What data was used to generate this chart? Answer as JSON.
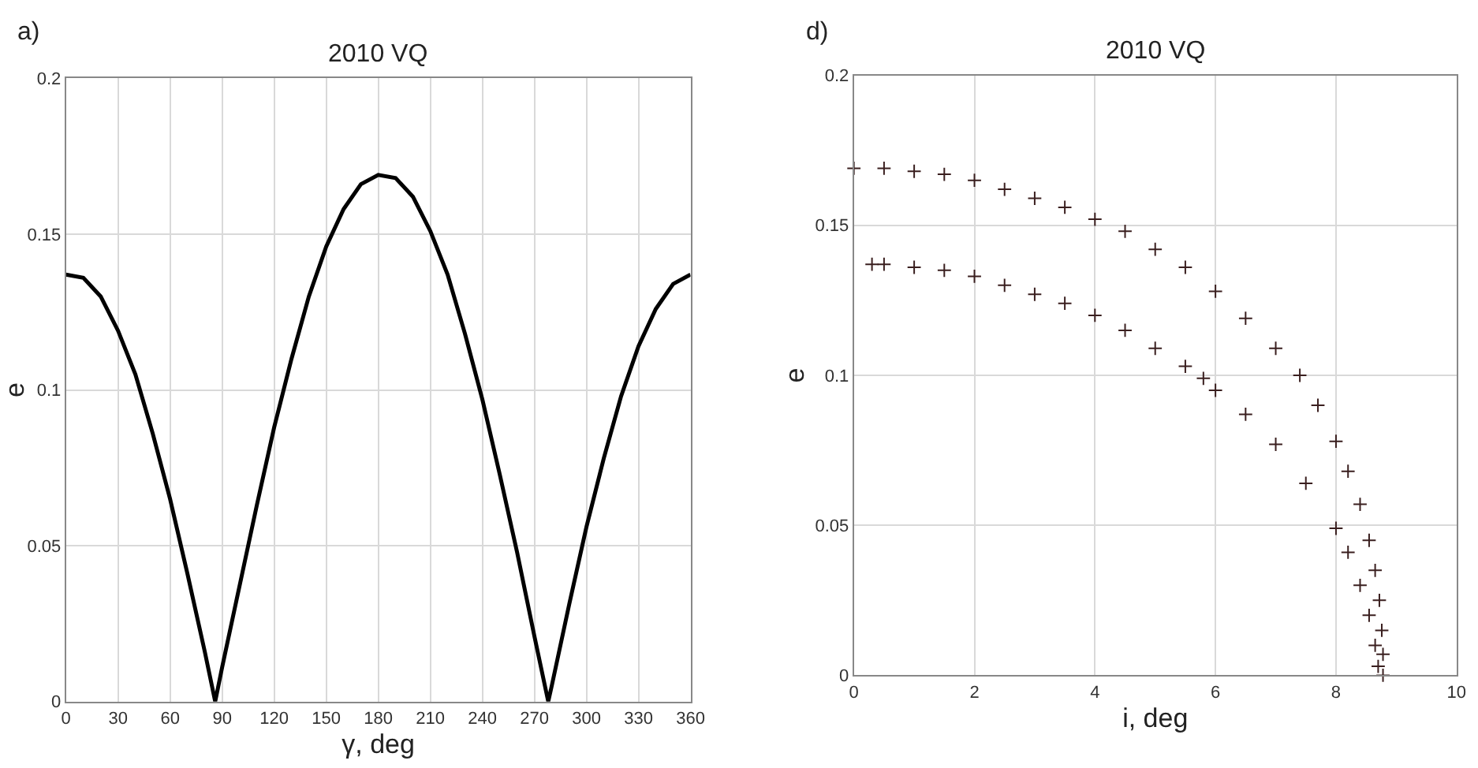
{
  "chart_data": [
    {
      "type": "line",
      "title": "2010 VQ",
      "xlabel": "γ, deg",
      "ylabel": "e",
      "annotations": [
        "a)"
      ],
      "x": [
        0,
        10,
        20,
        30,
        40,
        50,
        60,
        70,
        80,
        86,
        90,
        100,
        110,
        120,
        130,
        140,
        150,
        160,
        170,
        180,
        190,
        200,
        210,
        220,
        230,
        240,
        250,
        260,
        270,
        278,
        280,
        290,
        300,
        310,
        320,
        330,
        340,
        350,
        360
      ],
      "series": [
        {
          "color": "#000000",
          "values": [
            0.137,
            0.136,
            0.13,
            0.119,
            0.105,
            0.086,
            0.065,
            0.041,
            0.016,
            0.0,
            0.011,
            0.037,
            0.063,
            0.088,
            0.11,
            0.13,
            0.146,
            0.158,
            0.166,
            0.169,
            0.168,
            0.162,
            0.151,
            0.137,
            0.118,
            0.097,
            0.073,
            0.048,
            0.021,
            0.0,
            0.005,
            0.031,
            0.056,
            0.078,
            0.098,
            0.114,
            0.126,
            0.134,
            0.137
          ]
        }
      ],
      "xlim": [
        0,
        360
      ],
      "xticks": [
        0,
        30,
        60,
        90,
        120,
        150,
        180,
        210,
        240,
        270,
        300,
        330,
        360
      ],
      "ylim": [
        0,
        0.2
      ],
      "yticks": [
        0,
        0.05,
        0.1,
        0.15,
        0.2
      ],
      "grid": true,
      "marker": "none",
      "line_style": "solid"
    },
    {
      "type": "scatter",
      "title": "2010 VQ",
      "xlabel": "i, deg",
      "ylabel": "e",
      "annotations": [
        "d)"
      ],
      "series": [
        {
          "color": "#3a1f1f",
          "x": [
            0,
            0.5,
            1,
            1.5,
            2,
            2.5,
            3,
            3.5,
            4,
            4.5,
            5,
            5.5,
            6,
            6.5,
            7,
            7.4,
            7.7,
            8.0,
            8.2,
            8.4,
            8.55,
            8.65,
            8.72,
            8.76,
            8.78,
            8.78
          ],
          "values": [
            0.169,
            0.169,
            0.168,
            0.167,
            0.165,
            0.162,
            0.159,
            0.156,
            0.152,
            0.148,
            0.142,
            0.136,
            0.128,
            0.119,
            0.109,
            0.1,
            0.09,
            0.078,
            0.068,
            0.057,
            0.045,
            0.035,
            0.025,
            0.015,
            0.007,
            0.0
          ]
        },
        {
          "color": "#3a1f1f",
          "x": [
            0.3,
            0.5,
            1,
            1.5,
            2,
            2.5,
            3,
            3.5,
            4,
            4.5,
            5,
            5.5,
            5.8,
            6,
            6.5,
            7,
            7.5,
            8,
            8.2,
            8.4,
            8.55,
            8.65,
            8.7
          ],
          "values": [
            0.137,
            0.137,
            0.136,
            0.135,
            0.133,
            0.13,
            0.127,
            0.124,
            0.12,
            0.115,
            0.109,
            0.103,
            0.099,
            0.095,
            0.087,
            0.077,
            0.064,
            0.049,
            0.041,
            0.03,
            0.02,
            0.01,
            0.003
          ]
        }
      ],
      "xlim": [
        0,
        10
      ],
      "xticks": [
        0,
        2,
        4,
        6,
        8,
        10
      ],
      "ylim": [
        0,
        0.2
      ],
      "yticks": [
        0,
        0.05,
        0.1,
        0.15,
        0.2
      ],
      "grid": true,
      "marker": "cross"
    }
  ]
}
